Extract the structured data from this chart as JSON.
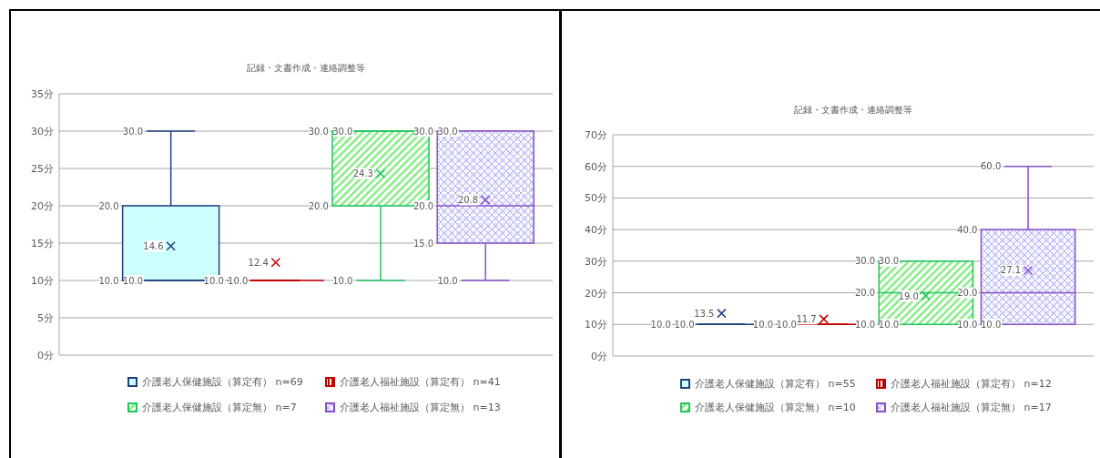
{
  "chart_data": [
    {
      "type": "box",
      "title": "記録・文書作成・連絡調整等",
      "categories": [
        null
      ],
      "ylim": [
        0,
        35
      ],
      "yticks": [
        {
          "value": 0,
          "label": "0分"
        },
        {
          "value": 5,
          "label": "5分"
        },
        {
          "value": 10,
          "label": "10分"
        },
        {
          "value": 15,
          "label": "15分"
        },
        {
          "value": 20,
          "label": "20分"
        },
        {
          "value": 25,
          "label": "25分"
        },
        {
          "value": 30,
          "label": "30分"
        },
        {
          "value": 35,
          "label": "35分"
        }
      ],
      "grid": "y",
      "legend": "bottom",
      "series": [
        {
          "name": "介護老人保健施設（算定有） n=69",
          "color": "#1f3f7f",
          "boxes": [
            {
              "low": 10,
              "q1": 10,
              "median": 10,
              "q3": 20,
              "high": 30,
              "mean": 14.6
            }
          ]
        },
        {
          "name": "介護老人福祉施設（算定有） n=41",
          "color": "#c00000",
          "boxes": [
            {
              "low": 10,
              "q1": 10,
              "median": 10,
              "q3": 10,
              "high": 10,
              "mean": 12.4
            }
          ]
        },
        {
          "name": "介護老人保健施設（算定無） n=7",
          "color": "#22c45e",
          "boxes": [
            {
              "low": 10,
              "q1": 20,
              "median": 30,
              "q3": 30,
              "high": 30,
              "mean": 24.3
            }
          ]
        },
        {
          "name": "介護老人福祉施設（算定無） n=13",
          "color": "#8a4fc8",
          "boxes": [
            {
              "low": 10,
              "q1": 15,
              "median": 20,
              "q3": 30,
              "high": 30,
              "mean": 20.8
            }
          ]
        }
      ],
      "annotations": [
        {
          "text": "30.0",
          "y": 30
        },
        {
          "text": "20.0",
          "y": 20
        },
        {
          "text": "10.0",
          "y": 10
        },
        {
          "text": "10.0",
          "y": 10
        },
        {
          "text": "14.6",
          "y": 14.6
        },
        {
          "text": "10.0",
          "y": 10
        },
        {
          "text": "10.0",
          "y": 10
        },
        {
          "text": "12.4",
          "y": 12.4
        },
        {
          "text": "30.0",
          "y": 30
        },
        {
          "text": "30.0",
          "y": 30
        },
        {
          "text": "20.0",
          "y": 20
        },
        {
          "text": "10.0",
          "y": 10
        },
        {
          "text": "24.3",
          "y": 24.3
        },
        {
          "text": "30.0",
          "y": 30
        },
        {
          "text": "30.0",
          "y": 30
        },
        {
          "text": "20.0",
          "y": 20
        },
        {
          "text": "15.0",
          "y": 15
        },
        {
          "text": "10.0",
          "y": 10
        },
        {
          "text": "20.8",
          "y": 20.8
        }
      ]
    },
    {
      "type": "box",
      "title": "記録・文書作成・連絡調整等",
      "categories": [
        null
      ],
      "ylim": [
        0,
        70
      ],
      "yticks": [
        {
          "value": 0,
          "label": "0分"
        },
        {
          "value": 10,
          "label": "10分"
        },
        {
          "value": 20,
          "label": "20分"
        },
        {
          "value": 30,
          "label": "30分"
        },
        {
          "value": 40,
          "label": "40分"
        },
        {
          "value": 50,
          "label": "50分"
        },
        {
          "value": 60,
          "label": "60分"
        },
        {
          "value": 70,
          "label": "70分"
        }
      ],
      "grid": "y",
      "legend": "bottom",
      "series": [
        {
          "name": "介護老人保健施設（算定有） n=55",
          "color": "#1f3f7f",
          "boxes": [
            {
              "low": 10,
              "q1": 10,
              "median": 10,
              "q3": 10,
              "high": 10,
              "mean": 13.5
            }
          ]
        },
        {
          "name": "介護老人福祉施設（算定有） n=12",
          "color": "#c00000",
          "boxes": [
            {
              "low": 10,
              "q1": 10,
              "median": 10,
              "q3": 10,
              "high": 10,
              "mean": 11.7
            }
          ]
        },
        {
          "name": "介護老人保健施設（算定無） n=10",
          "color": "#22c45e",
          "boxes": [
            {
              "low": 10,
              "q1": 10,
              "median": 20,
              "q3": 30,
              "high": 30,
              "mean": 19.0
            }
          ]
        },
        {
          "name": "介護老人福祉施設（算定無） n=17",
          "color": "#8a4fc8",
          "boxes": [
            {
              "low": 10,
              "q1": 10,
              "median": 20,
              "q3": 40,
              "high": 60,
              "mean": 27.1
            }
          ]
        }
      ],
      "annotations": [
        {
          "text": "10.0",
          "y": 10
        },
        {
          "text": "10.0",
          "y": 10
        },
        {
          "text": "13.5",
          "y": 13.5
        },
        {
          "text": "10.0",
          "y": 10
        },
        {
          "text": "10.0",
          "y": 10
        },
        {
          "text": "11.7",
          "y": 11.7
        },
        {
          "text": "30.0",
          "y": 30
        },
        {
          "text": "30.0",
          "y": 30
        },
        {
          "text": "20.0",
          "y": 20
        },
        {
          "text": "10.0",
          "y": 10
        },
        {
          "text": "10.0",
          "y": 10
        },
        {
          "text": "19.0",
          "y": 19.0
        },
        {
          "text": "60.0",
          "y": 60
        },
        {
          "text": "40.0",
          "y": 40
        },
        {
          "text": "20.0",
          "y": 20
        },
        {
          "text": "10.0",
          "y": 10
        },
        {
          "text": "10.0",
          "y": 10
        },
        {
          "text": "27.1",
          "y": 27.1
        }
      ]
    }
  ]
}
